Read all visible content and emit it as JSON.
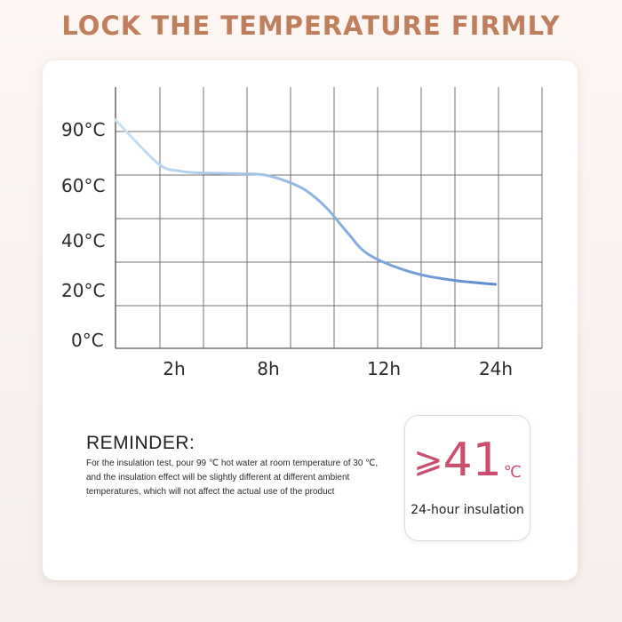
{
  "headline": "LOCK THE TEMPERATURE FIRMLY",
  "chart_data": {
    "type": "line",
    "title": "",
    "xlabel": "",
    "ylabel": "",
    "y_tick_labels": [
      "0°C",
      "20°C",
      "40°C",
      "60°C",
      "90°C"
    ],
    "x_tick_labels": [
      "2h",
      "8h",
      "12h",
      "24h"
    ],
    "grid": true,
    "series": [
      {
        "x": [
          0,
          1,
          1.5,
          2,
          3,
          3.5,
          4,
          4.5,
          5,
          5.5,
          6,
          7,
          8,
          9
        ],
        "y": [
          99,
          80,
          76,
          75,
          74.5,
          74,
          71,
          66,
          58,
          50,
          43,
          36,
          32,
          30
        ]
      }
    ],
    "colors": {
      "line_start": "#c8e1f3",
      "line_end": "#5b8cd0",
      "grid": "#707070"
    }
  },
  "reminder": {
    "title": "REMINDER:",
    "body": "For the insulation test, pour 99 ℃ hot water at room temperature of 30 ℃, and the insulation effect will be slightly different at different ambient temperatures, which will not affect the actual use of the product"
  },
  "badge": {
    "symbol": "⩾",
    "value": "41",
    "unit": "℃",
    "label": "24-hour insulation",
    "accent": "#cc4e6e"
  }
}
